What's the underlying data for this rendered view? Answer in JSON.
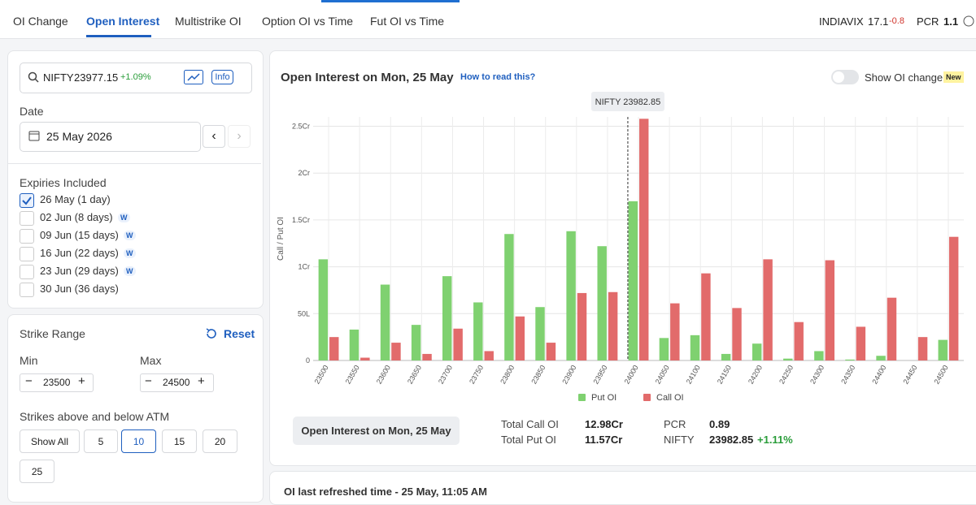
{
  "nav": {
    "tabs": [
      "OI Change",
      "Open Interest",
      "Multistrike OI",
      "Option OI vs Time",
      "Fut OI vs Time"
    ],
    "vix_label": "INDIAVIX",
    "vix": 17.1,
    "vix_change": -0.8,
    "pcr_label": "PCR",
    "pcr": 1.1
  },
  "sidebar": {
    "search": {
      "symbol": "NIFTY",
      "price": 23977.15,
      "change": "+1.09%",
      "info": "Info"
    },
    "date_label": "Date",
    "date": "25 May 2026",
    "expiries_label": "Expiries Included",
    "expiries": [
      {
        "text": "26 May (1 day)",
        "checked": true
      },
      {
        "text": "02 Jun (8 days)",
        "badge": "W"
      },
      {
        "text": "09 Jun (15 days)",
        "badge": "W"
      },
      {
        "text": "16 Jun (22 days)",
        "badge": "W"
      },
      {
        "text": "23 Jun (29 days)",
        "badge": "W"
      },
      {
        "text": "30 Jun (36 days)"
      }
    ],
    "strike_title": "Strike Range",
    "reset": "Reset",
    "min_label": "Min",
    "min": 23500,
    "max_label": "Max",
    "max": 24500,
    "atm_label": "Strikes above and below ATM",
    "atm_options": [
      "Show All",
      5,
      10,
      15,
      20,
      25
    ]
  },
  "chart_data": {
    "type": "bar",
    "title": "Open Interest on Mon, 25 May",
    "help_link": "How to read this?",
    "toggle_label": "Show OI change",
    "badge": "New",
    "y_label": "Call / Put OI",
    "x": [
      23500,
      23550,
      23600,
      23650,
      23700,
      23750,
      23800,
      23850,
      23900,
      23950,
      24000,
      24050,
      24100,
      24150,
      24200,
      24250,
      24300,
      24350,
      24400,
      24450,
      24500
    ],
    "xlim": [
      23475,
      24525
    ],
    "series": [
      {
        "name": "Put OI",
        "color": "#7fd170",
        "values": [
          108,
          33,
          81,
          38,
          90,
          62,
          135,
          57,
          138,
          122,
          170,
          24,
          27,
          7,
          18,
          2,
          10,
          1,
          5,
          0,
          22
        ]
      },
      {
        "name": "Call OI",
        "color": "#e26b6b",
        "values": [
          25,
          3,
          19,
          7,
          34,
          10,
          47,
          19,
          72,
          73,
          258,
          61,
          93,
          56,
          108,
          41,
          107,
          36,
          67,
          25,
          132
        ]
      }
    ],
    "ylim": [
      0,
      260
    ],
    "yticks": [
      0,
      {
        "value": 50,
        "label": "50L"
      },
      {
        "value": 100,
        "label": "1Cr"
      },
      {
        "value": 150,
        "label": "1.5Cr"
      },
      {
        "value": 200,
        "label": "2Cr"
      },
      {
        "value": 250,
        "label": "2.5Cr"
      }
    ],
    "grid": true,
    "annotation": {
      "label": "NIFTY 23982.85",
      "x": 23982.85
    }
  },
  "summary": {
    "button": "Open Interest on Mon, 25 May",
    "call_label": "Total Call OI",
    "call": "12.98Cr",
    "put_label": "Total Put OI",
    "put": "11.57Cr",
    "pcr_label": "PCR",
    "pcr": 0.89,
    "nifty_label": "NIFTY",
    "nifty": 23982.85,
    "nifty_change": "+1.11%"
  },
  "footer": "OI last refreshed time - 25 May, 11:05 AM"
}
